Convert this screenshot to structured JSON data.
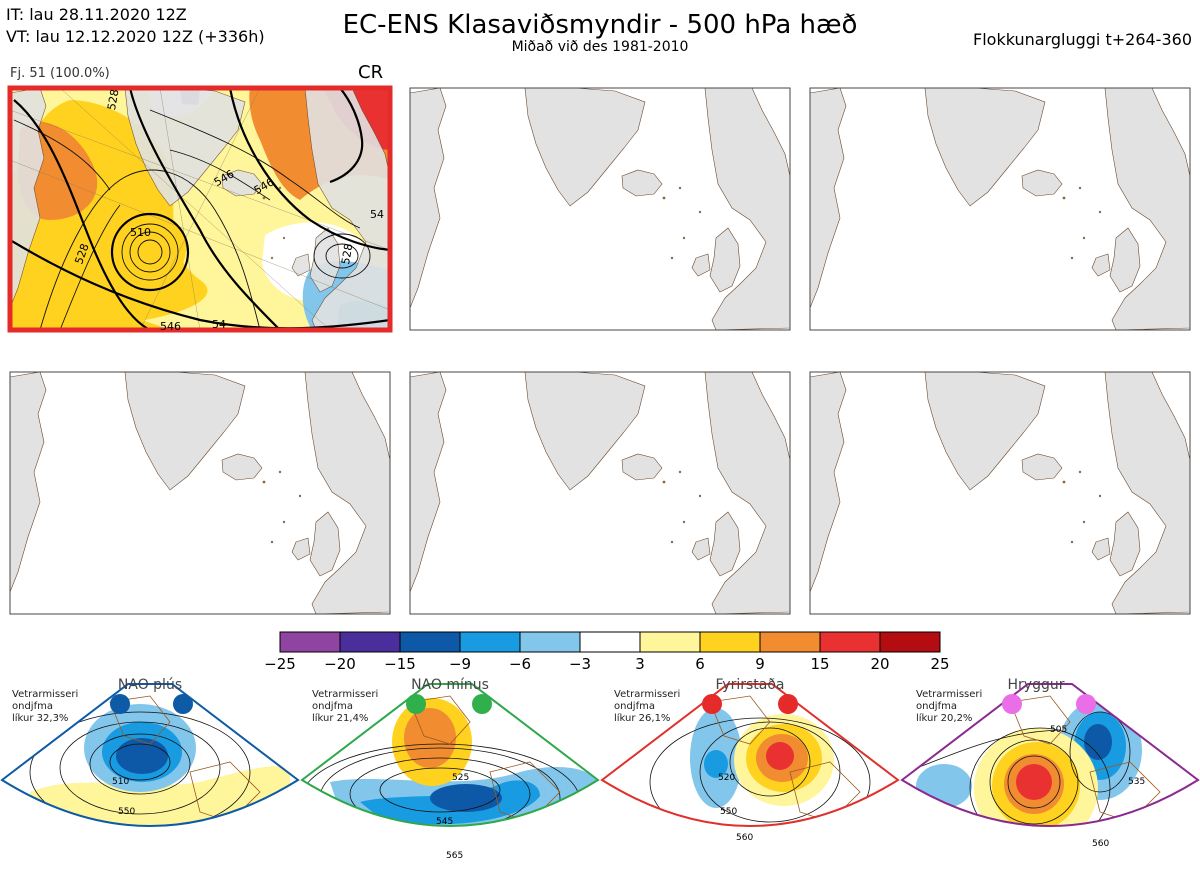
{
  "header": {
    "it_line": "IT: lau 28.11.2020 12Z",
    "vt_line": "VT: lau 12.12.2020 12Z  (+336h)",
    "title": "EC-ENS Klasaviðsmyndir - 500 hPa hæð",
    "subtitle": "Miðað við des 1981-2010",
    "window": "Flokkunargluggi t+264-360"
  },
  "main_panel": {
    "members": "Fj. 51 (100.0%)",
    "regime_code": "CR",
    "contour_labels": [
      "510",
      "528",
      "528",
      "546",
      "546",
      "54",
      "528",
      "546",
      "54"
    ]
  },
  "colorbar": {
    "ticks": [
      "−25",
      "−20",
      "−15",
      "−9",
      "−6",
      "−3",
      "3",
      "6",
      "9",
      "15",
      "20",
      "25"
    ],
    "colors": [
      "#8e44a0",
      "#4a2f9c",
      "#0e58a8",
      "#189be0",
      "#82c6ec",
      "#ffffff",
      "#fff59a",
      "#ffd21f",
      "#f28c30",
      "#ea3132",
      "#b30d12"
    ]
  },
  "regimes": [
    {
      "name": "NAO plús",
      "text": [
        "Vetrarmisseri",
        "ondjfma",
        "líkur 32,3%"
      ],
      "border": "#0d5aa7",
      "dot": "#0d5aa7",
      "labels": [
        "510",
        "550"
      ]
    },
    {
      "name": "NAO mínus",
      "text": [
        "Vetrarmisseri",
        "ondjfma",
        "líkur 21,4%"
      ],
      "border": "#2ea84a",
      "dot": "#2fb04c",
      "labels": [
        "525",
        "545",
        "565"
      ]
    },
    {
      "name": "Fyrirstaða",
      "text": [
        "Vetrarmisseri",
        "ondjfma",
        "líkur 26,1%"
      ],
      "border": "#e0302c",
      "dot": "#e52a2a",
      "labels": [
        "520",
        "550",
        "560"
      ]
    },
    {
      "name": "Hryggur",
      "text": [
        "Vetrarmisseri",
        "ondjfma",
        "líkur 20,2%"
      ],
      "border": "#8a2a90",
      "dot": "#ea6ee8",
      "labels": [
        "505",
        "535",
        "560"
      ]
    }
  ]
}
